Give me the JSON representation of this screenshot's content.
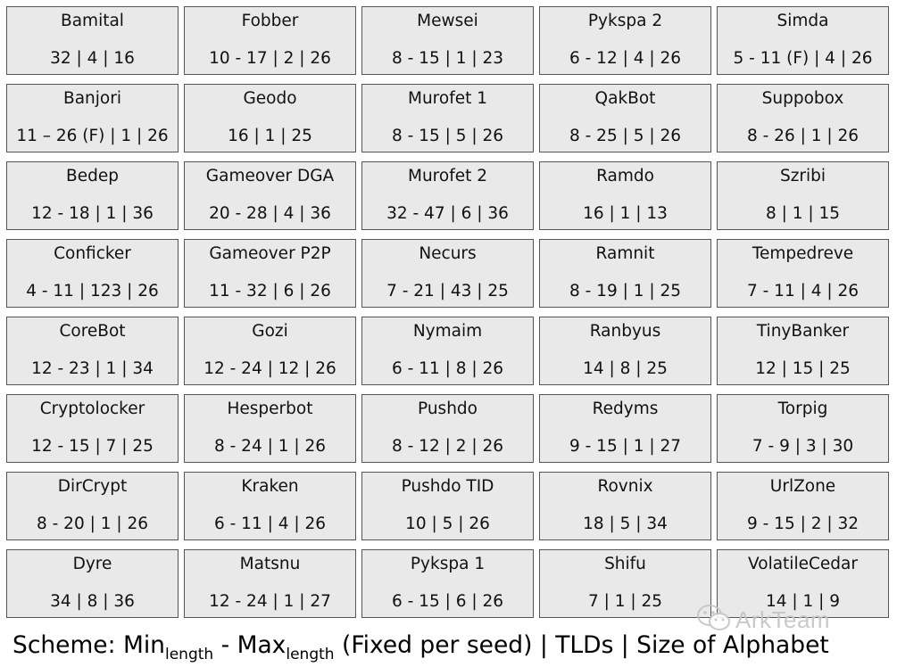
{
  "cells": [
    {
      "name": "Bamital",
      "params": "32 | 4 | 16"
    },
    {
      "name": "Fobber",
      "params": "10 - 17 | 2 | 26"
    },
    {
      "name": "Mewsei",
      "params": "8 - 15 | 1 | 23"
    },
    {
      "name": "Pykspa 2",
      "params": "6 - 12 | 4 | 26"
    },
    {
      "name": "Simda",
      "params": "5 - 11 (F) | 4 | 26"
    },
    {
      "name": "Banjori",
      "params": "11 – 26 (F) | 1 | 26"
    },
    {
      "name": "Geodo",
      "params": "16 | 1 | 25"
    },
    {
      "name": "Murofet 1",
      "params": "8 - 15 | 5 | 26"
    },
    {
      "name": "QakBot",
      "params": "8 - 25 | 5 | 26"
    },
    {
      "name": "Suppobox",
      "params": "8 - 26 | 1 | 26"
    },
    {
      "name": "Bedep",
      "params": "12 - 18 | 1 | 36"
    },
    {
      "name": "Gameover DGA",
      "params": "20 - 28 | 4 | 36"
    },
    {
      "name": "Murofet 2",
      "params": "32 - 47 | 6 | 36"
    },
    {
      "name": "Ramdo",
      "params": "16 | 1 | 13"
    },
    {
      "name": "Szribi",
      "params": "8 | 1 | 15"
    },
    {
      "name": "Conficker",
      "params": "4 - 11 | 123 | 26"
    },
    {
      "name": "Gameover P2P",
      "params": "11 - 32 | 6 | 26"
    },
    {
      "name": "Necurs",
      "params": "7 - 21 | 43 | 25"
    },
    {
      "name": "Ramnit",
      "params": "8 - 19 | 1 | 25"
    },
    {
      "name": "Tempedreve",
      "params": "7 - 11 | 4 | 26"
    },
    {
      "name": "CoreBot",
      "params": "12 - 23 | 1 | 34"
    },
    {
      "name": "Gozi",
      "params": "12 - 24 | 12 | 26"
    },
    {
      "name": "Nymaim",
      "params": "6 - 11 | 8 | 26"
    },
    {
      "name": "Ranbyus",
      "params": "14 | 8 | 25"
    },
    {
      "name": "TinyBanker",
      "params": "12 | 15 | 25"
    },
    {
      "name": "Cryptolocker",
      "params": "12 - 15 | 7 | 25"
    },
    {
      "name": "Hesperbot",
      "params": "8 - 24 | 1 | 26"
    },
    {
      "name": "Pushdo",
      "params": "8 - 12 | 2 | 26"
    },
    {
      "name": "Redyms",
      "params": "9 - 15 | 1 | 27"
    },
    {
      "name": "Torpig",
      "params": "7 - 9 | 3 | 30"
    },
    {
      "name": "DirCrypt",
      "params": "8 - 20 | 1 | 26"
    },
    {
      "name": "Kraken",
      "params": "6 - 11 | 4 | 26"
    },
    {
      "name": "Pushdo TID",
      "params": "10 | 5 | 26"
    },
    {
      "name": "Rovnix",
      "params": "18 | 5 | 34"
    },
    {
      "name": "UrlZone",
      "params": "9 - 15 | 2 | 32"
    },
    {
      "name": "Dyre",
      "params": "34 | 8 | 36"
    },
    {
      "name": "Matsnu",
      "params": "12 - 24 | 1 | 27"
    },
    {
      "name": "Pykspa 1",
      "params": "6 - 15 | 6 | 26"
    },
    {
      "name": "Shifu",
      "params": "7 | 1 | 25"
    },
    {
      "name": "VolatileCedar",
      "params": "14 | 1 | 9"
    }
  ],
  "scheme": {
    "prefix": "Scheme: Min",
    "sub1": "length",
    "middle": " - Max",
    "sub2": "length",
    "suffix": " (Fixed per seed) | TLDs | Size of Alphabet"
  },
  "watermark": {
    "text": "ArkTeam",
    "icon": "wechat-logo-icon"
  }
}
